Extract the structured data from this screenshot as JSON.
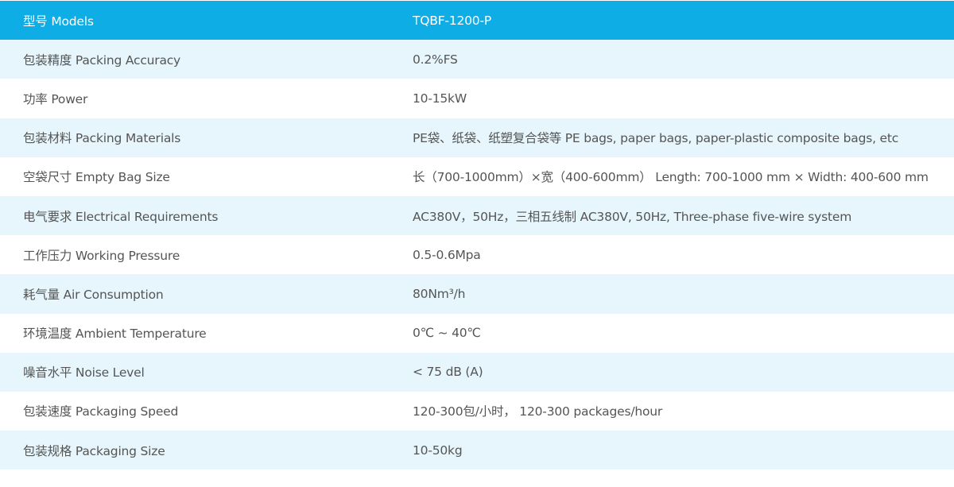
{
  "colors": {
    "header": "#0eade5",
    "alt_row": "#e6f6fc",
    "text": "#555555"
  },
  "header": {
    "label": "型号 Models",
    "value": "TQBF-1200-P"
  },
  "rows": [
    {
      "label": "包装精度 Packing Accuracy",
      "value": "0.2%FS"
    },
    {
      "label": "功率 Power",
      "value": "10-15kW"
    },
    {
      "label": "包装材料 Packing Materials",
      "value": "PE袋、纸袋、纸塑复合袋等   PE bags, paper bags, paper-plastic composite bags, etc"
    },
    {
      "label": "空袋尺寸 Empty Bag Size",
      "value": "长（700-1000mm）×宽（400-600mm）   Length: 700-1000 mm × Width: 400-600 mm"
    },
    {
      "label": "电气要求 Electrical Requirements",
      "value": "AC380V，50Hz，三相五线制    AC380V, 50Hz, Three-phase five-wire system"
    },
    {
      "label": "工作压力 Working Pressure",
      "value": "0.5-0.6Mpa"
    },
    {
      "label": "耗气量 Air Consumption",
      "value": "80Nm³/h"
    },
    {
      "label": "环境温度 Ambient Temperature",
      "value": "0℃ ~ 40℃"
    },
    {
      "label": "噪音水平 Noise Level",
      "value": "< 75 dB (A)"
    },
    {
      "label": "包装速度 Packaging Speed",
      "value": "120-300包/小时， 120-300 packages/hour"
    },
    {
      "label": "包装规格 Packaging Size",
      "value": "10-50kg"
    }
  ]
}
